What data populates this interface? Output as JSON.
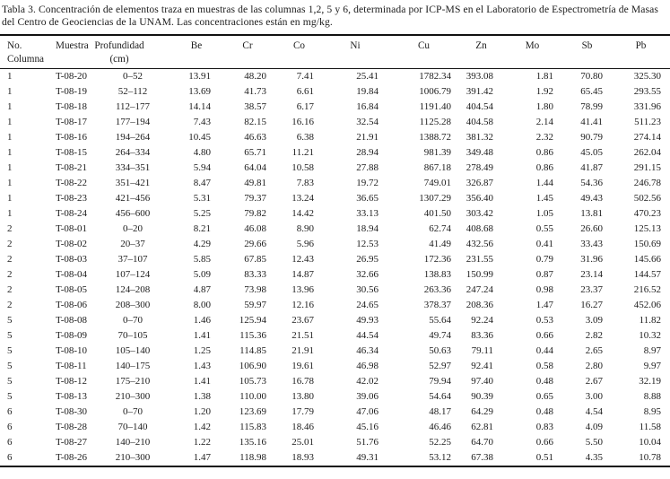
{
  "caption": "Tabla 3. Concentración de elementos traza en muestras de las columnas 1,2, 5 y 6, determinada por ICP-MS en el Laboratorio de Espectrometría de Masas del Centro de Geociencias de la UNAM. Las concentraciones están en mg/kg.",
  "table": {
    "columns": [
      "No.\nColumna",
      "Muestra",
      "Profundidad\n(cm)",
      "Be",
      "Cr",
      "Co",
      "Ni",
      "Cu",
      "Zn",
      "Mo",
      "Sb",
      "Pb"
    ],
    "rows": [
      [
        "1",
        "T-08-20",
        "0–52",
        "13.91",
        "48.20",
        "7.41",
        "25.41",
        "1782.34",
        "393.08",
        "1.81",
        "70.80",
        "325.30"
      ],
      [
        "1",
        "T-08-19",
        "52–112",
        "13.69",
        "41.73",
        "6.61",
        "19.84",
        "1006.79",
        "391.42",
        "1.92",
        "65.45",
        "293.55"
      ],
      [
        "1",
        "T-08-18",
        "112–177",
        "14.14",
        "38.57",
        "6.17",
        "16.84",
        "1191.40",
        "404.54",
        "1.80",
        "78.99",
        "331.96"
      ],
      [
        "1",
        "T-08-17",
        "177–194",
        "7.43",
        "82.15",
        "16.16",
        "32.54",
        "1125.28",
        "404.58",
        "2.14",
        "41.41",
        "511.23"
      ],
      [
        "1",
        "T-08-16",
        "194–264",
        "10.45",
        "46.63",
        "6.38",
        "21.91",
        "1388.72",
        "381.32",
        "2.32",
        "90.79",
        "274.14"
      ],
      [
        "1",
        "T-08-15",
        "264–334",
        "4.80",
        "65.71",
        "11.21",
        "28.94",
        "981.39",
        "349.48",
        "0.86",
        "45.05",
        "262.04"
      ],
      [
        "1",
        "T-08-21",
        "334–351",
        "5.94",
        "64.04",
        "10.58",
        "27.88",
        "867.18",
        "278.49",
        "0.86",
        "41.87",
        "291.15"
      ],
      [
        "1",
        "T-08-22",
        "351–421",
        "8.47",
        "49.81",
        "7.83",
        "19.72",
        "749.01",
        "326.87",
        "1.44",
        "54.36",
        "246.78"
      ],
      [
        "1",
        "T-08-23",
        "421–456",
        "5.31",
        "79.37",
        "13.24",
        "36.65",
        "1307.29",
        "356.40",
        "1.45",
        "49.43",
        "502.56"
      ],
      [
        "1",
        "T-08-24",
        "456–600",
        "5.25",
        "79.82",
        "14.42",
        "33.13",
        "401.50",
        "303.42",
        "1.05",
        "13.81",
        "470.23"
      ],
      [
        "2",
        "T-08-01",
        "0–20",
        "8.21",
        "46.08",
        "8.90",
        "18.94",
        "62.74",
        "408.68",
        "0.55",
        "26.60",
        "125.13"
      ],
      [
        "2",
        "T-08-02",
        "20–37",
        "4.29",
        "29.66",
        "5.96",
        "12.53",
        "41.49",
        "432.56",
        "0.41",
        "33.43",
        "150.69"
      ],
      [
        "2",
        "T-08-03",
        "37–107",
        "5.85",
        "67.85",
        "12.43",
        "26.95",
        "172.36",
        "231.55",
        "0.79",
        "31.96",
        "145.66"
      ],
      [
        "2",
        "T-08-04",
        "107–124",
        "5.09",
        "83.33",
        "14.87",
        "32.66",
        "138.83",
        "150.99",
        "0.87",
        "23.14",
        "144.57"
      ],
      [
        "2",
        "T-08-05",
        "124–208",
        "4.87",
        "73.98",
        "13.96",
        "30.56",
        "263.36",
        "247.24",
        "0.98",
        "23.37",
        "216.52"
      ],
      [
        "2",
        "T-08-06",
        "208–300",
        "8.00",
        "59.97",
        "12.16",
        "24.65",
        "378.37",
        "208.36",
        "1.47",
        "16.27",
        "452.06"
      ],
      [
        "5",
        "T-08-08",
        "0–70",
        "1.46",
        "125.94",
        "23.67",
        "49.93",
        "55.64",
        "92.24",
        "0.53",
        "3.09",
        "11.82"
      ],
      [
        "5",
        "T-08-09",
        "70–105",
        "1.41",
        "115.36",
        "21.51",
        "44.54",
        "49.74",
        "83.36",
        "0.66",
        "2.82",
        "10.32"
      ],
      [
        "5",
        "T-08-10",
        "105–140",
        "1.25",
        "114.85",
        "21.91",
        "46.34",
        "50.63",
        "79.11",
        "0.44",
        "2.65",
        "8.97"
      ],
      [
        "5",
        "T-08-11",
        "140–175",
        "1.43",
        "106.90",
        "19.61",
        "46.98",
        "52.97",
        "92.41",
        "0.58",
        "2.80",
        "9.97"
      ],
      [
        "5",
        "T-08-12",
        "175–210",
        "1.41",
        "105.73",
        "16.78",
        "42.02",
        "79.94",
        "97.40",
        "0.48",
        "2.67",
        "32.19"
      ],
      [
        "5",
        "T-08-13",
        "210–300",
        "1.38",
        "110.00",
        "13.80",
        "39.06",
        "54.64",
        "90.39",
        "0.65",
        "3.00",
        "8.88"
      ],
      [
        "6",
        "T-08-30",
        "0–70",
        "1.20",
        "123.69",
        "17.79",
        "47.06",
        "48.17",
        "64.29",
        "0.48",
        "4.54",
        "8.95"
      ],
      [
        "6",
        "T-08-28",
        "70–140",
        "1.42",
        "115.83",
        "18.46",
        "45.16",
        "46.46",
        "62.81",
        "0.83",
        "4.09",
        "11.58"
      ],
      [
        "6",
        "T-08-27",
        "140–210",
        "1.22",
        "135.16",
        "25.01",
        "51.76",
        "52.25",
        "64.70",
        "0.66",
        "5.50",
        "10.04"
      ],
      [
        "6",
        "T-08-26",
        "210–300",
        "1.47",
        "118.98",
        "18.93",
        "49.31",
        "53.12",
        "67.38",
        "0.51",
        "4.35",
        "10.78"
      ]
    ]
  }
}
